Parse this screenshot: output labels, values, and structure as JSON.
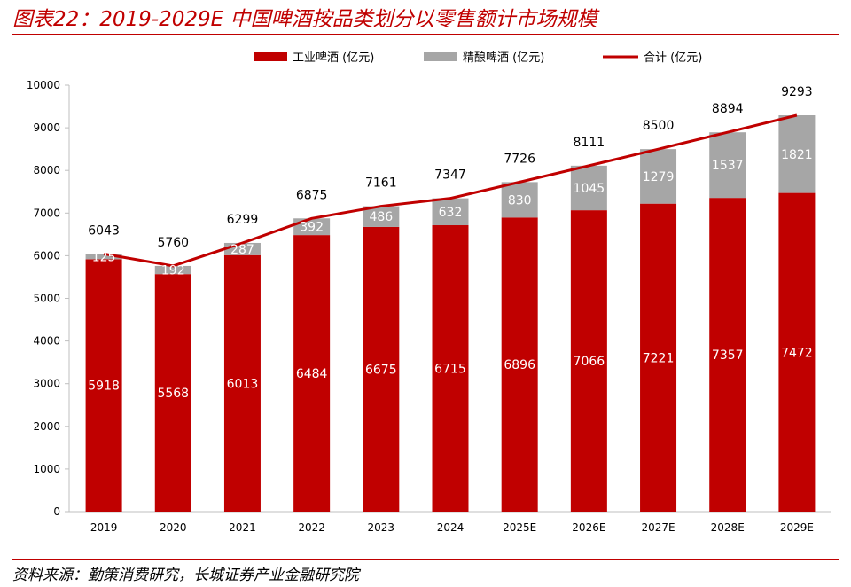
{
  "figure_title": "图表22：2019-2029E 中国啤酒按品类划分以零售额计市场规模",
  "source": "资料来源：勤策消费研究，长城证券产业金融研究院",
  "colors": {
    "industrial": "#c00000",
    "craft": "#a6a6a6",
    "total_line": "#c00000",
    "axis": "#bfbfbf",
    "title": "#c00000"
  },
  "chart_data": {
    "type": "bar",
    "stacked": true,
    "categories": [
      "2019",
      "2020",
      "2021",
      "2022",
      "2023",
      "2024",
      "2025E",
      "2026E",
      "2027E",
      "2028E",
      "2029E"
    ],
    "series": [
      {
        "name": "工业啤酒 (亿元)",
        "type": "bar",
        "color": "#c00000",
        "values": [
          5918,
          5568,
          6013,
          6484,
          6675,
          6715,
          6896,
          7066,
          7221,
          7357,
          7472
        ]
      },
      {
        "name": "精酿啤酒 (亿元)",
        "type": "bar",
        "color": "#a6a6a6",
        "values": [
          125,
          192,
          287,
          392,
          486,
          632,
          830,
          1045,
          1279,
          1537,
          1821
        ]
      },
      {
        "name": "合计 (亿元)",
        "type": "line",
        "color": "#c00000",
        "values": [
          6043,
          5760,
          6299,
          6875,
          7161,
          7347,
          7726,
          8111,
          8500,
          8894,
          9293
        ]
      }
    ],
    "ylim": [
      0,
      10000
    ],
    "yticks": [
      0,
      1000,
      2000,
      3000,
      4000,
      5000,
      6000,
      7000,
      8000,
      9000,
      10000
    ],
    "legend_position": "top-center",
    "grid": false
  }
}
